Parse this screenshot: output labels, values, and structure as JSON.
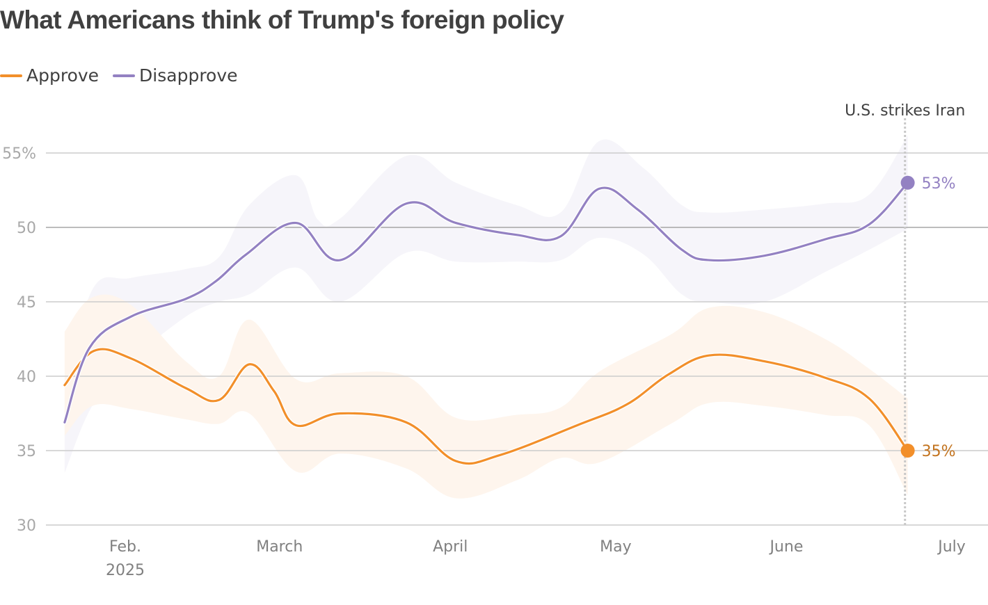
{
  "chart_data": {
    "type": "line",
    "title": "What Americans think of Trump's foreign policy",
    "xlabel": "",
    "ylabel": "",
    "x_unit": "day of year 2025 (Jan 1 = 0)",
    "ylim": [
      30,
      56
    ],
    "xlim": [
      9,
      186
    ],
    "grid": true,
    "legend_position": "top-left",
    "y_ticks": [
      {
        "value": 55,
        "label": "55%"
      },
      {
        "value": 50,
        "label": "50"
      },
      {
        "value": 45,
        "label": "45"
      },
      {
        "value": 40,
        "label": "40"
      },
      {
        "value": 35,
        "label": "35"
      },
      {
        "value": 30,
        "label": "30"
      }
    ],
    "x_ticks": [
      {
        "value": 31,
        "label": "Feb.",
        "sublabel": "2025"
      },
      {
        "value": 59,
        "label": "March"
      },
      {
        "value": 90,
        "label": "April"
      },
      {
        "value": 120,
        "label": "May"
      },
      {
        "value": 151,
        "label": "June"
      },
      {
        "value": 181,
        "label": "July"
      }
    ],
    "annotation": {
      "x": 172,
      "label": "U.S. strikes Iran"
    },
    "series": [
      {
        "name": "Approve",
        "color": "#f28f2a",
        "band_color": "#fef4ec",
        "end_label": "35%",
        "end_label_color": "#c2731e",
        "points": [
          [
            20,
            39.4
          ],
          [
            25.3,
            41.7
          ],
          [
            32,
            41.2
          ],
          [
            42,
            39.2
          ],
          [
            48,
            38.4
          ],
          [
            53.5,
            40.8
          ],
          [
            58,
            39.0
          ],
          [
            62,
            36.7
          ],
          [
            70,
            37.5
          ],
          [
            82,
            36.9
          ],
          [
            91,
            34.3
          ],
          [
            99,
            34.7
          ],
          [
            113,
            36.7
          ],
          [
            122,
            38.1
          ],
          [
            129.5,
            40.1
          ],
          [
            137,
            41.4
          ],
          [
            147,
            41.0
          ],
          [
            158,
            39.9
          ],
          [
            166,
            38.5
          ],
          [
            173,
            35.0
          ]
        ],
        "band_upper": [
          [
            20,
            43.0
          ],
          [
            25,
            45.3
          ],
          [
            32,
            44.8
          ],
          [
            42,
            41.0
          ],
          [
            48,
            40.0
          ],
          [
            53.5,
            43.8
          ],
          [
            62,
            39.8
          ],
          [
            70,
            40.2
          ],
          [
            82,
            40.0
          ],
          [
            91,
            37.2
          ],
          [
            102,
            37.4
          ],
          [
            110,
            37.9
          ],
          [
            117,
            40.3
          ],
          [
            130,
            42.8
          ],
          [
            137,
            44.6
          ],
          [
            147,
            44.3
          ],
          [
            158,
            42.5
          ],
          [
            166,
            40.5
          ],
          [
            173,
            38.5
          ]
        ],
        "band_lower": [
          [
            20,
            36.0
          ],
          [
            25,
            38.0
          ],
          [
            32,
            37.8
          ],
          [
            42,
            37.1
          ],
          [
            48,
            36.8
          ],
          [
            53.5,
            37.5
          ],
          [
            62,
            33.6
          ],
          [
            70,
            34.8
          ],
          [
            82,
            33.8
          ],
          [
            91,
            31.8
          ],
          [
            102,
            33.0
          ],
          [
            110,
            34.5
          ],
          [
            117,
            34.2
          ],
          [
            130,
            36.8
          ],
          [
            137,
            38.2
          ],
          [
            147,
            38.0
          ],
          [
            158,
            37.4
          ],
          [
            166,
            36.7
          ],
          [
            173,
            32.0
          ]
        ]
      },
      {
        "name": "Disapprove",
        "color": "#9381c2",
        "band_color": "#f6f4fa",
        "end_label": "53%",
        "end_label_color": "#9381c2",
        "points": [
          [
            20,
            36.9
          ],
          [
            24.5,
            41.9
          ],
          [
            32,
            44.0
          ],
          [
            42,
            45.2
          ],
          [
            47.5,
            46.4
          ],
          [
            53,
            48.2
          ],
          [
            62,
            50.3
          ],
          [
            70,
            47.8
          ],
          [
            82,
            51.6
          ],
          [
            91,
            50.3
          ],
          [
            102,
            49.5
          ],
          [
            110,
            49.4
          ],
          [
            117,
            52.6
          ],
          [
            124,
            51.2
          ],
          [
            132,
            48.5
          ],
          [
            137,
            47.8
          ],
          [
            147,
            48.1
          ],
          [
            158,
            49.2
          ],
          [
            166,
            50.2
          ],
          [
            173,
            53.0
          ]
        ],
        "band_upper": [
          [
            20,
            38.5
          ],
          [
            25,
            45.8
          ],
          [
            32,
            46.6
          ],
          [
            42,
            47.2
          ],
          [
            48,
            48.0
          ],
          [
            53.5,
            51.5
          ],
          [
            62,
            53.5
          ],
          [
            66,
            50.5
          ],
          [
            70,
            50.6
          ],
          [
            82,
            54.8
          ],
          [
            91,
            53.0
          ],
          [
            102,
            51.5
          ],
          [
            110,
            51.0
          ],
          [
            117,
            55.8
          ],
          [
            125,
            54.0
          ],
          [
            132,
            51.5
          ],
          [
            137,
            51.0
          ],
          [
            147,
            51.2
          ],
          [
            158,
            51.6
          ],
          [
            166,
            52.2
          ],
          [
            173,
            56.2
          ]
        ],
        "band_lower": [
          [
            20,
            33.5
          ],
          [
            25,
            38.0
          ],
          [
            32,
            41.0
          ],
          [
            42,
            44.0
          ],
          [
            48,
            45.0
          ],
          [
            53.5,
            45.5
          ],
          [
            62,
            47.3
          ],
          [
            70,
            45.0
          ],
          [
            82,
            48.3
          ],
          [
            91,
            47.7
          ],
          [
            102,
            47.7
          ],
          [
            110,
            47.8
          ],
          [
            117,
            49.3
          ],
          [
            125,
            48.2
          ],
          [
            132,
            45.5
          ],
          [
            137,
            45.0
          ],
          [
            147,
            45.0
          ],
          [
            158,
            47.0
          ],
          [
            166,
            48.5
          ],
          [
            173,
            49.9
          ]
        ]
      }
    ]
  },
  "legend": [
    {
      "label": "Approve",
      "color": "#f28f2a"
    },
    {
      "label": "Disapprove",
      "color": "#9381c2"
    }
  ]
}
